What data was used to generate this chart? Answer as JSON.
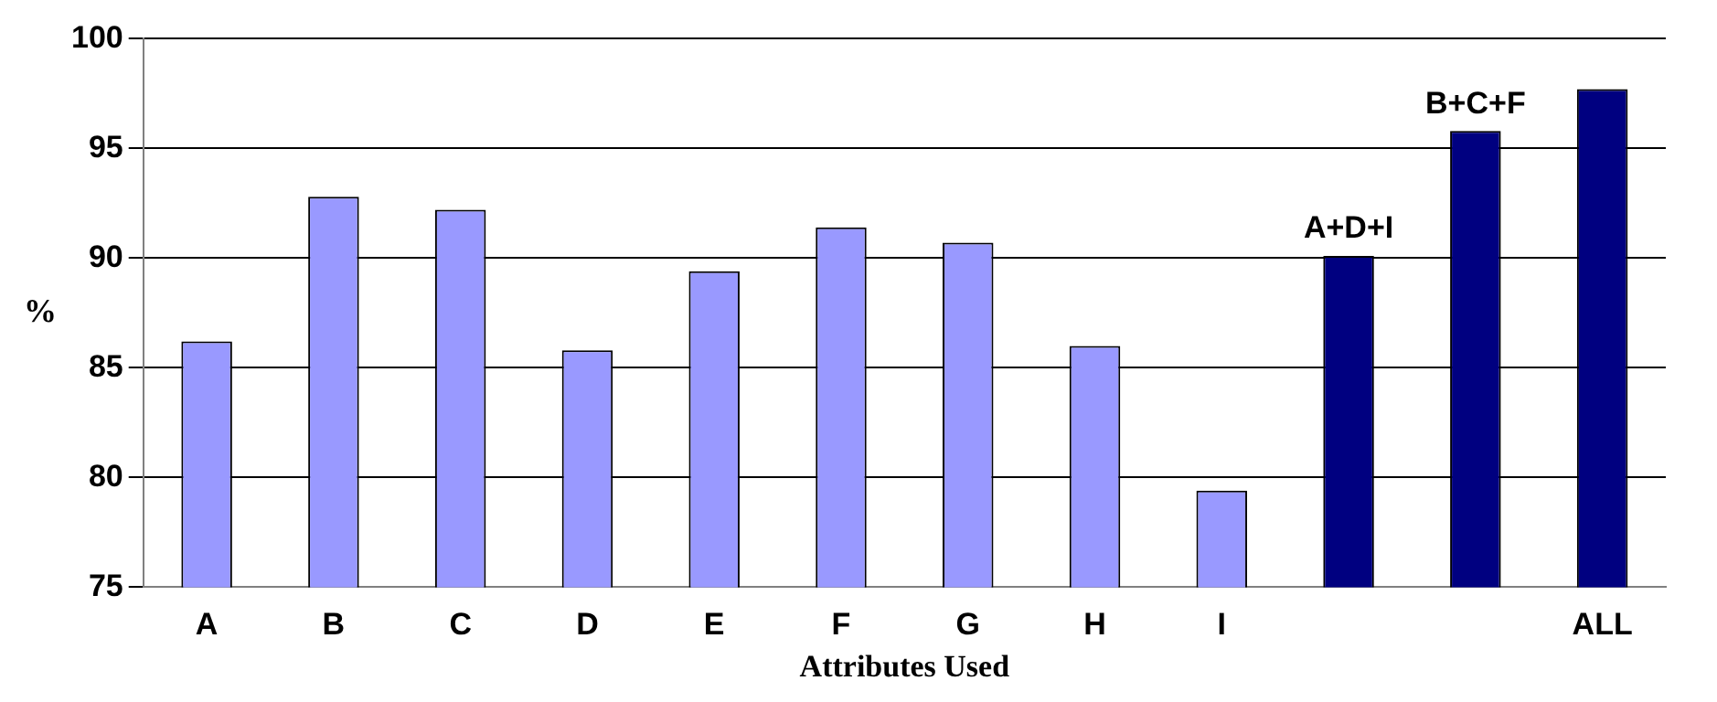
{
  "chart_data": {
    "type": "bar",
    "xlabel": "Attributes Used",
    "ylabel": "%",
    "categories": [
      "A",
      "B",
      "C",
      "D",
      "E",
      "F",
      "G",
      "H",
      "I",
      null,
      null,
      "ALL"
    ],
    "values": [
      86.2,
      92.8,
      92.2,
      85.8,
      89.4,
      91.4,
      90.7,
      86.0,
      79.4,
      90.1,
      95.8,
      97.7
    ],
    "colors": [
      "#9999ff",
      "#9999ff",
      "#9999ff",
      "#9999ff",
      "#9999ff",
      "#9999ff",
      "#9999ff",
      "#9999ff",
      "#9999ff",
      "#000080",
      "#000080",
      "#000080"
    ],
    "annotations": [
      {
        "text": "A+D+I",
        "y": 90.1
      },
      {
        "text": "B+C+F",
        "y": 95.8
      }
    ],
    "ylim": [
      75,
      100
    ],
    "yticks": [
      75,
      80,
      85,
      90,
      95,
      100
    ],
    "grid": "y",
    "legend": false
  }
}
